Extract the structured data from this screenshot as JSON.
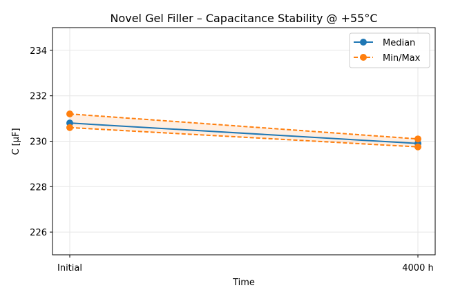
{
  "chart_data": {
    "type": "line",
    "title": "Novel Gel Filler – Capacitance Stability @ +55°C",
    "xlabel": "Time",
    "ylabel": "C [µF]",
    "categories": [
      "Initial",
      "4000 h"
    ],
    "ylim": [
      225,
      235
    ],
    "yticks": [
      226,
      228,
      230,
      232,
      234
    ],
    "grid": true,
    "legend_position": "top-right",
    "series": [
      {
        "name": "Median",
        "values": [
          230.8,
          229.9
        ],
        "color": "#1f77b4",
        "style": "solid"
      },
      {
        "name": "Min/Max",
        "min": [
          230.6,
          229.75
        ],
        "max": [
          231.2,
          230.1
        ],
        "color": "#ff7f0e",
        "style": "dashed"
      }
    ]
  }
}
